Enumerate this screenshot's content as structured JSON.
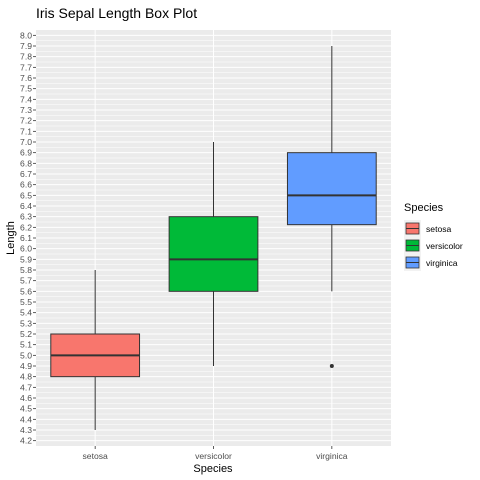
{
  "chart_data": {
    "type": "box",
    "title": "Iris Sepal Length Box Plot",
    "xlabel": "Species",
    "ylabel": "Length",
    "ylim": [
      4.15,
      8.05
    ],
    "yticks": [
      "4.2",
      "4.3",
      "4.4",
      "4.5",
      "4.6",
      "4.7",
      "4.8",
      "4.9",
      "5.0",
      "5.1",
      "5.2",
      "5.3",
      "5.4",
      "5.5",
      "5.6",
      "5.7",
      "5.8",
      "5.9",
      "6.0",
      "6.1",
      "6.2",
      "6.3",
      "6.4",
      "6.5",
      "6.6",
      "6.7",
      "6.8",
      "6.9",
      "7.0",
      "7.1",
      "7.2",
      "7.3",
      "7.4",
      "7.5",
      "7.6",
      "7.7",
      "7.8",
      "7.9",
      "8.0"
    ],
    "categories": [
      "setosa",
      "versicolor",
      "virginica"
    ],
    "series": [
      {
        "name": "setosa",
        "color": "#F8766D",
        "whisker_low": 4.3,
        "q1": 4.8,
        "median": 5.0,
        "q3": 5.2,
        "whisker_high": 5.8,
        "outliers": []
      },
      {
        "name": "versicolor",
        "color": "#00BA38",
        "whisker_low": 4.9,
        "q1": 5.6,
        "median": 5.9,
        "q3": 6.3,
        "whisker_high": 7.0,
        "outliers": []
      },
      {
        "name": "virginica",
        "color": "#619CFF",
        "whisker_low": 5.6,
        "q1": 6.225,
        "median": 6.5,
        "q3": 6.9,
        "whisker_high": 7.9,
        "outliers": [
          4.9
        ]
      }
    ],
    "legend": {
      "title": "Species",
      "position": "right"
    },
    "grid": true,
    "background": "#EBEBEB"
  }
}
